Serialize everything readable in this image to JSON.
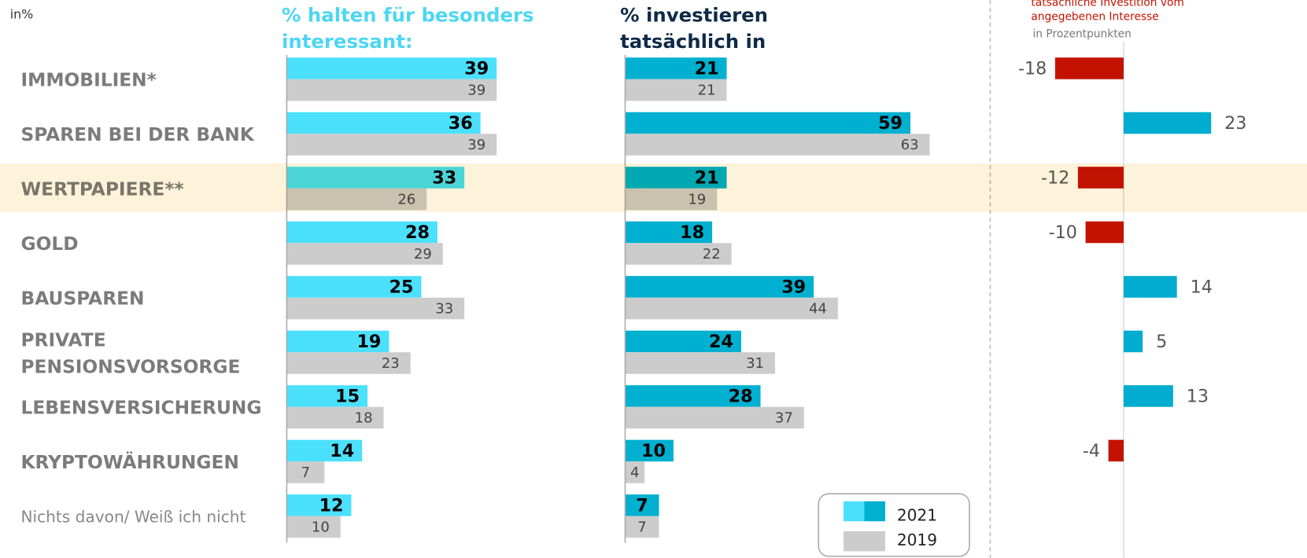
{
  "unit_label": "in%",
  "highlight_index": 2,
  "chart_data": [
    {
      "type": "bar",
      "title": [
        "% halten für besonders",
        "interessant:"
      ],
      "categories": [
        "IMMOBILIEN*",
        "SPAREN BEI DER BANK",
        "WERTPAPIERE**",
        "GOLD",
        "BAUSPAREN",
        "PRIVATE PENSIONSVORSORGE",
        "LEBENSVERSICHERUNG",
        "KRYPTOWÄHRUNGEN",
        "Nichts davon/ Weiß ich nicht"
      ],
      "xlim": [
        0,
        70
      ],
      "series": [
        {
          "name": "2021",
          "color": "#4be0fc",
          "values": [
            39,
            36,
            33,
            28,
            25,
            19,
            15,
            14,
            12
          ]
        },
        {
          "name": "2019",
          "color": "#cccccc",
          "values": [
            39,
            39,
            26,
            29,
            33,
            23,
            18,
            7,
            10
          ]
        }
      ]
    },
    {
      "type": "bar",
      "title": [
        "% investieren",
        "tatsächlich in"
      ],
      "xlim": [
        0,
        70
      ],
      "series": [
        {
          "color": "#00b0d0",
          "values": [
            21,
            59,
            21,
            18,
            39,
            24,
            28,
            10,
            7
          ]
        },
        {
          "color": "#cccccc",
          "values": [
            21,
            63,
            19,
            22,
            44,
            31,
            37,
            4,
            7
          ]
        }
      ]
    },
    {
      "type": "diverging-bar",
      "title": [
        "tatsächliche Investition vom",
        "angegebenen Interesse"
      ],
      "subtitle": "in Prozentpunkten",
      "xlim": [
        -30,
        30
      ],
      "positive_color": "#00acd0",
      "negative_color": "#c41200",
      "values": [
        -18,
        23,
        -12,
        -10,
        14,
        5,
        13,
        -4
      ]
    }
  ]
}
